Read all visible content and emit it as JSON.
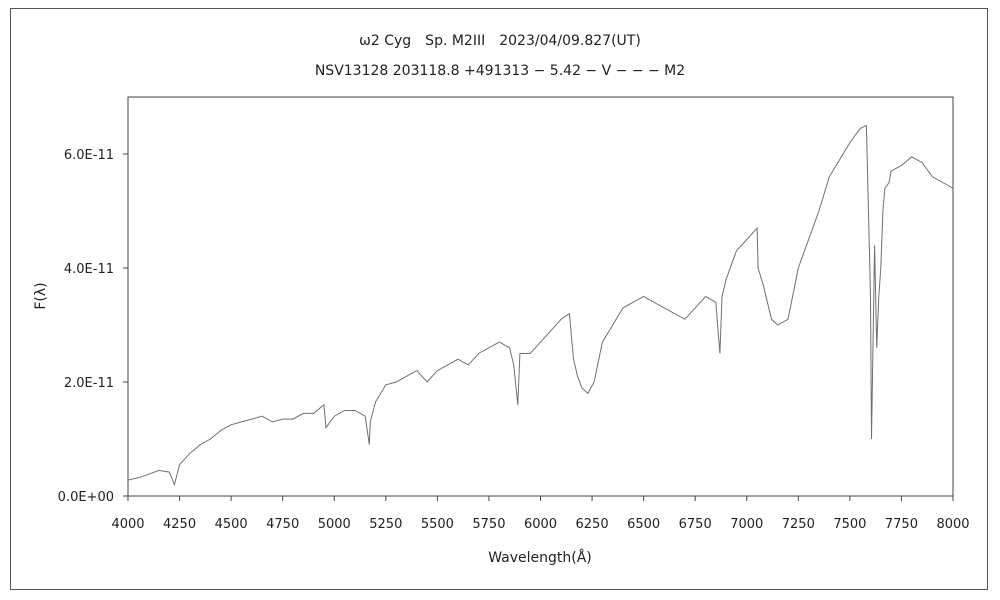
{
  "chart_data": {
    "type": "line",
    "title": "ω2 Cyg　Sp. M2III　2023/04/09.827(UT)",
    "subtitle": "NSV13128 203118.8 +491313 − 5.42 − V − − − M2",
    "xlabel": "Wavelength(Å)",
    "ylabel": "F(λ)",
    "xlim": [
      4000,
      8000
    ],
    "ylim": [
      0,
      7e-11
    ],
    "x_ticks": [
      4000,
      4250,
      4500,
      4750,
      5000,
      5250,
      5500,
      5750,
      6000,
      6250,
      6500,
      6750,
      7000,
      7250,
      7500,
      7750,
      8000
    ],
    "y_ticks": [
      0,
      2e-11,
      4e-11,
      6e-11
    ],
    "y_tick_labels": [
      "0.0E+00",
      "2.0E-11",
      "4.0E-11",
      "6.0E-11"
    ],
    "grid": false,
    "line_color": "#707070",
    "series": [
      {
        "x": [
          4000,
          4050,
          4100,
          4150,
          4200,
          4225,
          4250,
          4300,
          4350,
          4400,
          4450,
          4500,
          4550,
          4600,
          4650,
          4700,
          4750,
          4800,
          4850,
          4900,
          4950,
          4960,
          5000,
          5050,
          5100,
          5150,
          5170,
          5175,
          5200,
          5250,
          5300,
          5350,
          5400,
          5450,
          5500,
          5550,
          5600,
          5650,
          5700,
          5750,
          5800,
          5850,
          5870,
          5890,
          5900,
          5950,
          6000,
          6050,
          6100,
          6140,
          6160,
          6180,
          6200,
          6230,
          6260,
          6300,
          6350,
          6400,
          6450,
          6500,
          6550,
          6600,
          6650,
          6700,
          6750,
          6800,
          6850,
          6870,
          6880,
          6900,
          6950,
          7000,
          7050,
          7055,
          7080,
          7100,
          7120,
          7150,
          7200,
          7250,
          7300,
          7350,
          7400,
          7450,
          7500,
          7550,
          7580,
          7600,
          7605,
          7620,
          7630,
          7640,
          7650,
          7660,
          7670,
          7690,
          7700,
          7750,
          7800,
          7850,
          7900,
          7950,
          8000
        ],
        "y": [
          2.8e-12,
          3.2e-12,
          3.8e-12,
          4.5e-12,
          4.2e-12,
          2e-12,
          5.5e-12,
          7.5e-12,
          9e-12,
          1e-11,
          1.15e-11,
          1.25e-11,
          1.3e-11,
          1.35e-11,
          1.4e-11,
          1.3e-11,
          1.35e-11,
          1.35e-11,
          1.45e-11,
          1.45e-11,
          1.6e-11,
          1.2e-11,
          1.4e-11,
          1.5e-11,
          1.5e-11,
          1.4e-11,
          9e-12,
          1.3e-11,
          1.65e-11,
          1.95e-11,
          2e-11,
          2.1e-11,
          2.2e-11,
          2e-11,
          2.2e-11,
          2.3e-11,
          2.4e-11,
          2.3e-11,
          2.5e-11,
          2.6e-11,
          2.7e-11,
          2.6e-11,
          2.3e-11,
          1.6e-11,
          2.5e-11,
          2.5e-11,
          2.7e-11,
          2.9e-11,
          3.1e-11,
          3.2e-11,
          2.4e-11,
          2.1e-11,
          1.9e-11,
          1.8e-11,
          2e-11,
          2.7e-11,
          3e-11,
          3.3e-11,
          3.4e-11,
          3.5e-11,
          3.4e-11,
          3.3e-11,
          3.2e-11,
          3.1e-11,
          3.3e-11,
          3.5e-11,
          3.4e-11,
          2.5e-11,
          3.5e-11,
          3.8e-11,
          4.3e-11,
          4.5e-11,
          4.7e-11,
          4e-11,
          3.7e-11,
          3.4e-11,
          3.1e-11,
          3e-11,
          3.1e-11,
          4e-11,
          4.5e-11,
          5e-11,
          5.6e-11,
          5.9e-11,
          6.2e-11,
          6.45e-11,
          6.5e-11,
          3.5e-11,
          1e-11,
          4.4e-11,
          2.6e-11,
          3.5e-11,
          4e-11,
          5e-11,
          5.4e-11,
          5.5e-11,
          5.7e-11,
          5.8e-11,
          5.95e-11,
          5.85e-11,
          5.6e-11,
          5.5e-11,
          5.4e-11
        ]
      }
    ]
  }
}
